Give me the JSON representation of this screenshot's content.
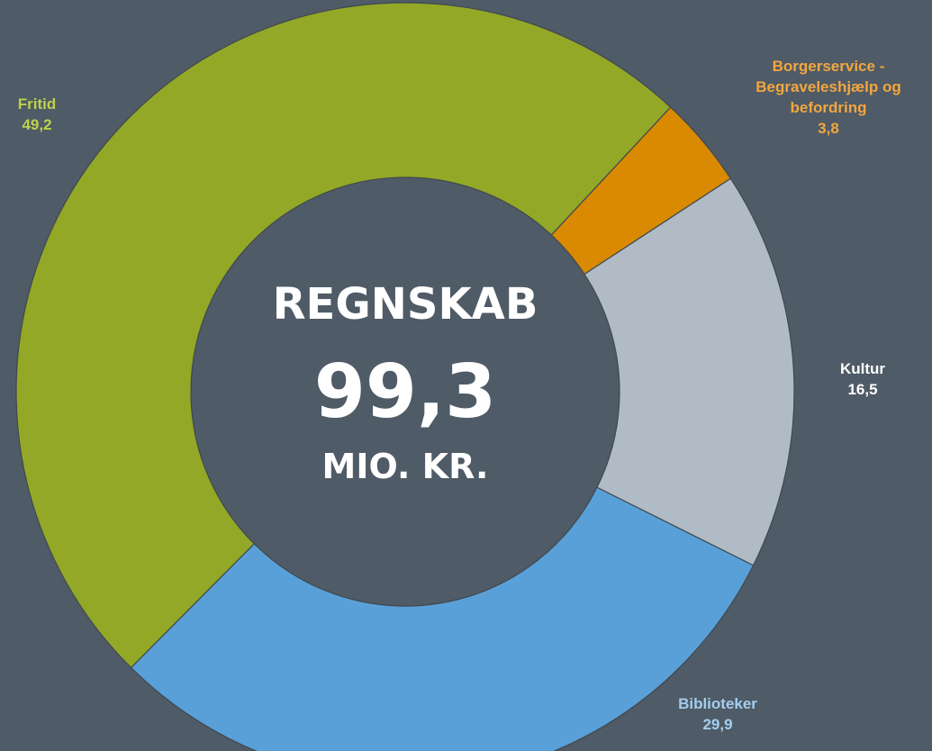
{
  "chart_data": {
    "type": "donut",
    "categories": [
      "Borgerservice - Begraveleshjælp og befordring",
      "Kultur",
      "Biblioteker",
      "Fritid"
    ],
    "values": [
      3.8,
      16.5,
      29.9,
      49.2
    ],
    "value_labels": [
      "3,8",
      "16,5",
      "29,9",
      "49,2"
    ],
    "colors": [
      "#d98a00",
      "#b1bbc6",
      "#5aa0d8",
      "#93a826"
    ],
    "label_colors": [
      "#f2a640",
      "#ffffff",
      "#a4cdef",
      "#bcd24a"
    ],
    "center_lines": [
      "REGNSKAB",
      "99,3",
      "MIO. KR."
    ]
  }
}
